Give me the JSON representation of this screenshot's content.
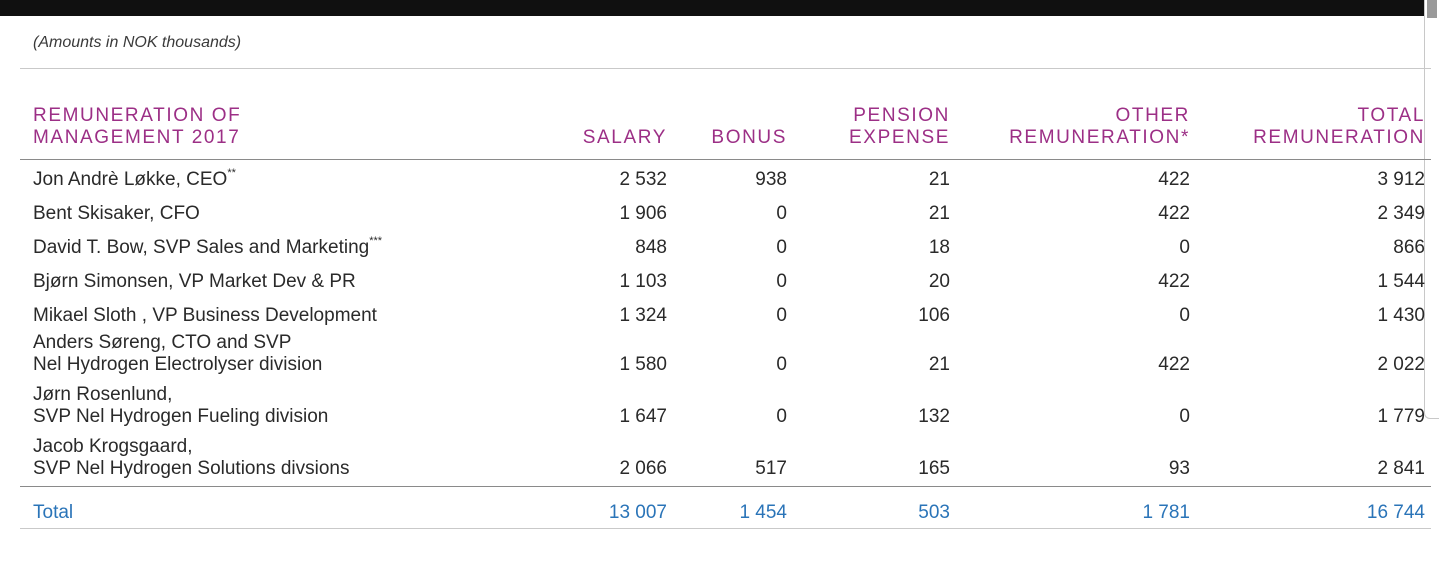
{
  "caption": "(Amounts in NOK thousands)",
  "table": {
    "headers": {
      "name": [
        "REMUNERATION OF",
        "MANAGEMENT 2017"
      ],
      "salary": [
        "SALARY"
      ],
      "bonus": [
        "BONUS"
      ],
      "pension": [
        "PENSION",
        "EXPENSE"
      ],
      "other": [
        "OTHER",
        "REMUNERATION*"
      ],
      "total": [
        "TOTAL",
        "REMUNERATION"
      ]
    },
    "rows": [
      {
        "name": [
          "Jon Andrè Løkke, CEO"
        ],
        "footnote": "**",
        "salary": "2 532",
        "bonus": "938",
        "pension": "21",
        "other": "422",
        "total": "3 912"
      },
      {
        "name": [
          "Bent Skisaker, CFO"
        ],
        "footnote": "",
        "salary": "1 906",
        "bonus": "0",
        "pension": "21",
        "other": "422",
        "total": "2 349"
      },
      {
        "name": [
          "David T. Bow, SVP Sales and Marketing"
        ],
        "footnote": "***",
        "salary": "848",
        "bonus": "0",
        "pension": "18",
        "other": "0",
        "total": "866"
      },
      {
        "name": [
          "Bjørn Simonsen, VP Market Dev & PR"
        ],
        "footnote": "",
        "salary": "1 103",
        "bonus": "0",
        "pension": "20",
        "other": "422",
        "total": "1 544"
      },
      {
        "name": [
          "Mikael Sloth , VP Business Development"
        ],
        "footnote": "",
        "salary": "1 324",
        "bonus": "0",
        "pension": "106",
        "other": "0",
        "total": "1 430"
      },
      {
        "name": [
          "Anders Søreng, CTO and SVP",
          "Nel Hydrogen Electrolyser division"
        ],
        "footnote": "",
        "salary": "1 580",
        "bonus": "0",
        "pension": "21",
        "other": "422",
        "total": "2 022"
      },
      {
        "name": [
          "Jørn Rosenlund,",
          "SVP Nel Hydrogen Fueling division"
        ],
        "footnote": "",
        "salary": "1 647",
        "bonus": "0",
        "pension": "132",
        "other": "0",
        "total": "1 779"
      },
      {
        "name": [
          "Jacob Krogsgaard,",
          "SVP Nel Hydrogen Solutions divsions"
        ],
        "footnote": "",
        "salary": "2 066",
        "bonus": "517",
        "pension": "165",
        "other": "93",
        "total": "2 841"
      }
    ],
    "total": {
      "label": "Total",
      "salary": "13 007",
      "bonus": "1 454",
      "pension": "503",
      "other": "1 781",
      "total": "16 744"
    }
  },
  "colors": {
    "header_text": "#9c2f86",
    "body_text": "#2a2a2a",
    "total_text": "#2a74b8",
    "top_bar": "#101010"
  }
}
